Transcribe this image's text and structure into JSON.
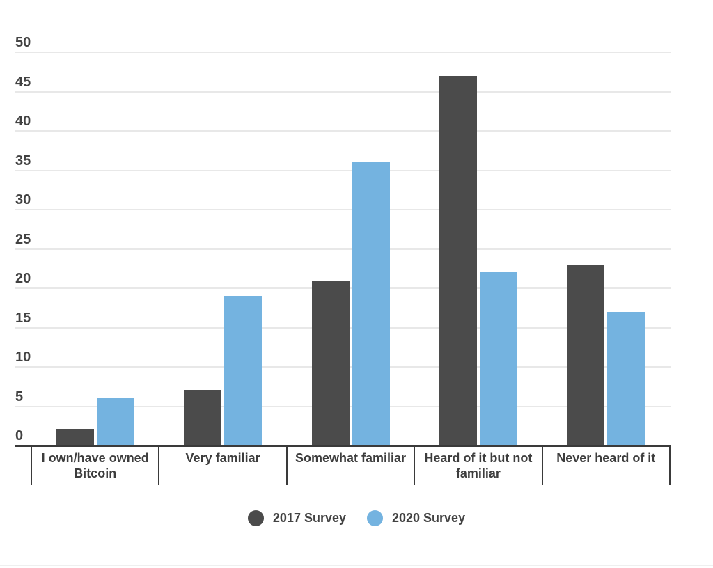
{
  "chart_data": {
    "type": "bar",
    "title": "",
    "categories": [
      "I own/have owned Bitcoin",
      "Very familiar",
      "Somewhat familiar",
      "Heard of it but not familiar",
      "Never heard of it"
    ],
    "series": [
      {
        "name": "2017 Survey",
        "color": "#4b4b4b",
        "values": [
          2,
          7,
          21,
          47,
          23
        ]
      },
      {
        "name": "2020 Survey",
        "color": "#74b3e0",
        "values": [
          6,
          19,
          36,
          22,
          17
        ]
      }
    ],
    "ylim": [
      0,
      50
    ],
    "yticks": [
      0,
      5,
      10,
      15,
      20,
      25,
      30,
      35,
      40,
      45,
      50
    ],
    "grid": true,
    "legend_position": "bottom"
  },
  "colors": {
    "grid": "#e8e8e8",
    "axis": "#3a3a3a",
    "tick_label": "#424242",
    "category_label": "#3d3d3d",
    "background": "#ffffff"
  }
}
